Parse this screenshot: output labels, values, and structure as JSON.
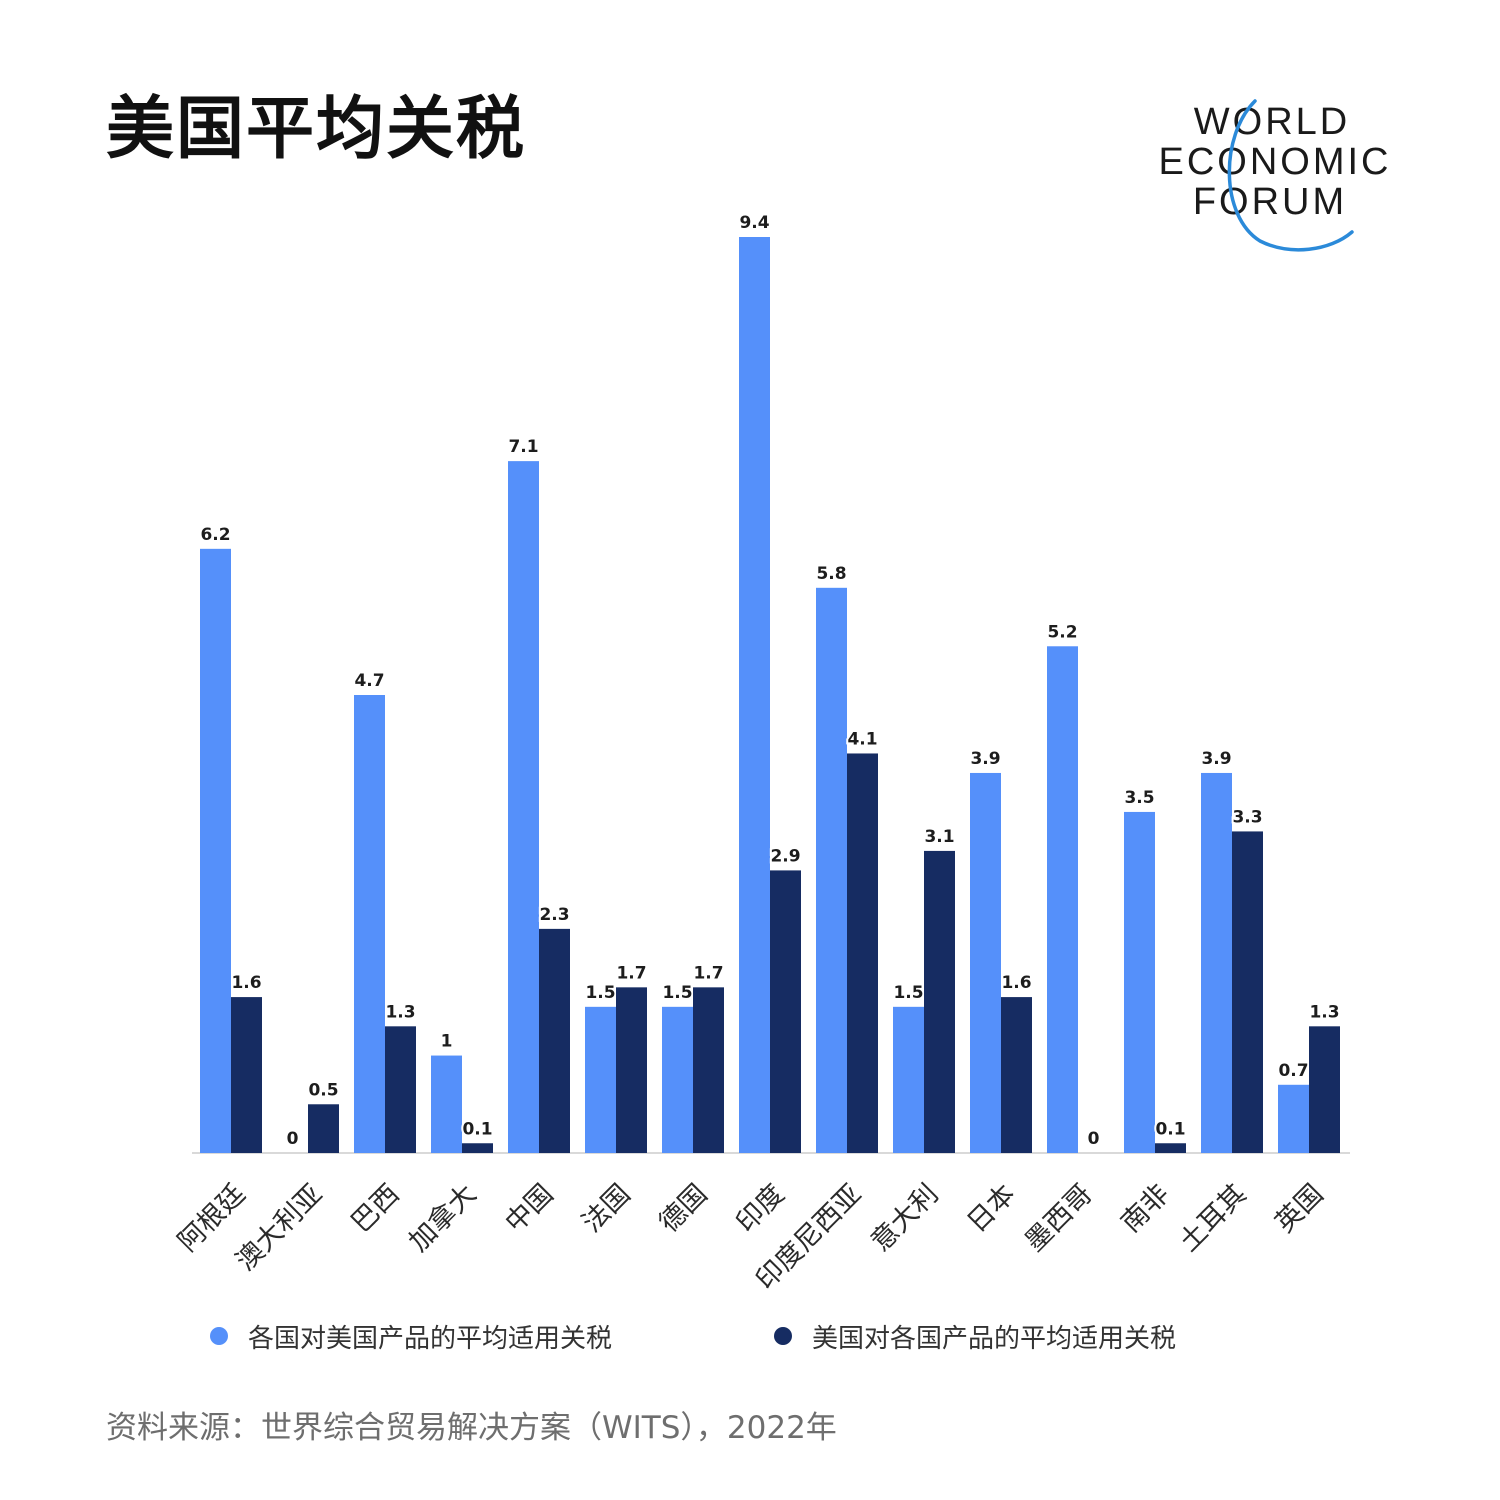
{
  "title": "美国平均关税",
  "logo": {
    "line1": "WORLD",
    "line2": "ECONOMIC",
    "line3": "FORUM",
    "color": "#1a1a1a",
    "swoosh_color": "#2b8ad9"
  },
  "source": "资料来源：世界综合贸易解决方案（WITS），2022年",
  "colors": {
    "series_1": "#5590fa",
    "series_2": "#162c62",
    "axis": "#d9d9d9"
  },
  "chart_data": {
    "type": "bar",
    "categories": [
      "阿根廷",
      "澳大利亚",
      "巴西",
      "加拿大",
      "中国",
      "法国",
      "德国",
      "印度",
      "印度尼西亚",
      "意大利",
      "日本",
      "墨西哥",
      "南非",
      "土耳其",
      "英国"
    ],
    "series": [
      {
        "name": "各国对美国产品的平均适用关税",
        "values": [
          6.2,
          0,
          4.7,
          1,
          7.1,
          1.5,
          1.5,
          9.4,
          5.8,
          1.5,
          3.9,
          5.2,
          3.5,
          3.9,
          0.7
        ]
      },
      {
        "name": "美国对各国产品的平均适用关税",
        "values": [
          1.6,
          0.5,
          1.3,
          0.1,
          2.3,
          1.7,
          1.7,
          2.9,
          4.1,
          3.1,
          1.6,
          0,
          0.1,
          3.3,
          1.3
        ]
      }
    ],
    "ylim": [
      0,
      9.4
    ],
    "grid": false,
    "legend_position": "bottom"
  }
}
